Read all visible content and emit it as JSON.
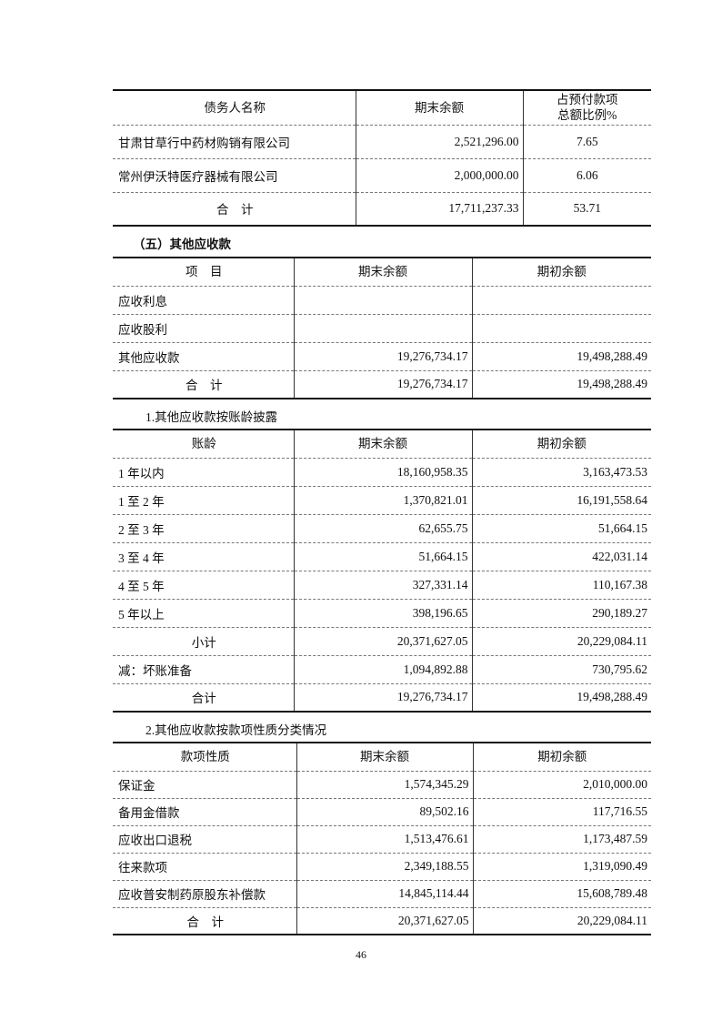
{
  "table_prepayments": {
    "headers": [
      "债务人名称",
      "期末余额",
      "占预付款项\n总额比例%"
    ],
    "rows": [
      [
        "甘肃甘草行中药材购销有限公司",
        "2,521,296.00",
        "7.65"
      ],
      [
        "常州伊沃特医疗器械有限公司",
        "2,000,000.00",
        "6.06"
      ],
      [
        "合　计",
        "17,711,237.33",
        "53.71"
      ]
    ]
  },
  "section_title": "（五）其他应收款",
  "table_other_receivables": {
    "headers": [
      "项　目",
      "期末余额",
      "期初余额"
    ],
    "rows": [
      [
        "应收利息",
        "",
        ""
      ],
      [
        "应收股利",
        "",
        ""
      ],
      [
        "其他应收款",
        "19,276,734.17",
        "19,498,288.49"
      ],
      [
        "合　计",
        "19,276,734.17",
        "19,498,288.49"
      ]
    ]
  },
  "subheading_1": "1.其他应收款按账龄披露",
  "table_aging": {
    "headers": [
      "账龄",
      "期末余额",
      "期初余额"
    ],
    "rows": [
      [
        "1 年以内",
        "18,160,958.35",
        "3,163,473.53"
      ],
      [
        "1 至 2 年",
        "1,370,821.01",
        "16,191,558.64"
      ],
      [
        "2 至 3 年",
        "62,655.75",
        "51,664.15"
      ],
      [
        "3 至 4 年",
        "51,664.15",
        "422,031.14"
      ],
      [
        "4 至 5 年",
        "327,331.14",
        "110,167.38"
      ],
      [
        "5 年以上",
        "398,196.65",
        "290,189.27"
      ],
      [
        "小计",
        "20,371,627.05",
        "20,229,084.11"
      ],
      [
        "减：坏账准备",
        "1,094,892.88",
        "730,795.62"
      ],
      [
        "合计",
        "19,276,734.17",
        "19,498,288.49"
      ]
    ]
  },
  "subheading_2": "2.其他应收款按款项性质分类情况",
  "table_nature": {
    "headers": [
      "款项性质",
      "期末余额",
      "期初余额"
    ],
    "rows": [
      [
        "保证金",
        "1,574,345.29",
        "2,010,000.00"
      ],
      [
        "备用金借款",
        "89,502.16",
        "117,716.55"
      ],
      [
        "应收出口退税",
        "1,513,476.61",
        "1,173,487.59"
      ],
      [
        "往来款项",
        "2,349,188.55",
        "1,319,090.49"
      ],
      [
        "应收普安制药原股东补偿款",
        "14,845,114.44",
        "15,608,789.48"
      ],
      [
        "合　计",
        "20,371,627.05",
        "20,229,084.11"
      ]
    ]
  },
  "page_number": "46"
}
